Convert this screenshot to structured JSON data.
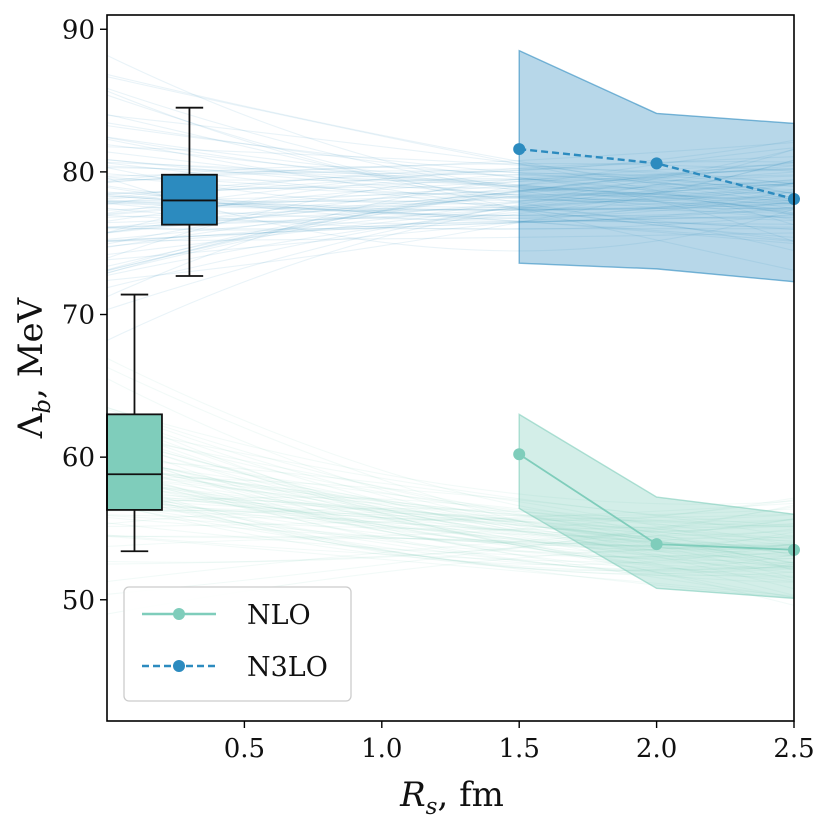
{
  "chart_data": {
    "type": "line",
    "title": "",
    "xlabel": "R_s, fm",
    "ylabel": "Λ_b, MeV",
    "xlabel_parts": {
      "main": "R",
      "sub": "s",
      "rest": ", fm"
    },
    "ylabel_parts": {
      "main": "Λ",
      "sub": "b",
      "rest": ", MeV"
    },
    "xlim": [
      0.0,
      2.5
    ],
    "ylim": [
      41.5,
      91.0
    ],
    "xticks": [
      0.5,
      1.0,
      1.5,
      2.0,
      2.5
    ],
    "xtick_labels": [
      "0.5",
      "1.0",
      "1.5",
      "2.0",
      "2.5"
    ],
    "yticks": [
      50,
      60,
      70,
      80,
      90
    ],
    "ytick_labels": [
      "50",
      "60",
      "70",
      "80",
      "90"
    ],
    "grid": false,
    "legend_position": "bottom-left",
    "series": [
      {
        "name": "NLO",
        "style": "solid",
        "color": "#7fcdbb",
        "x": [
          1.5,
          2.0,
          2.5
        ],
        "y": [
          60.2,
          53.9,
          53.5
        ],
        "band_upper": [
          63.0,
          57.2,
          56.0
        ],
        "band_lower": [
          56.4,
          50.8,
          50.1
        ],
        "samples_center": 58.8,
        "samples_spread": 2.5
      },
      {
        "name": "N3LO",
        "style": "dashed",
        "color": "#2c8bbf",
        "x": [
          1.5,
          2.0,
          2.5
        ],
        "y": [
          81.6,
          80.6,
          78.1
        ],
        "band_upper": [
          88.5,
          84.1,
          83.4
        ],
        "band_lower": [
          73.6,
          73.2,
          72.3
        ],
        "samples_center": 78.0,
        "samples_spread": 2.6
      }
    ],
    "boxplots": [
      {
        "series": "NLO",
        "x": 0.1,
        "whisker_low": 53.4,
        "q1": 56.3,
        "median": 58.8,
        "q3": 63.0,
        "whisker_high": 71.4,
        "color": "#7fcdbb"
      },
      {
        "series": "N3LO",
        "x": 0.3,
        "whisker_low": 72.7,
        "q1": 76.3,
        "median": 78.0,
        "q3": 79.8,
        "whisker_high": 84.5,
        "color": "#2c8bbf"
      }
    ]
  }
}
